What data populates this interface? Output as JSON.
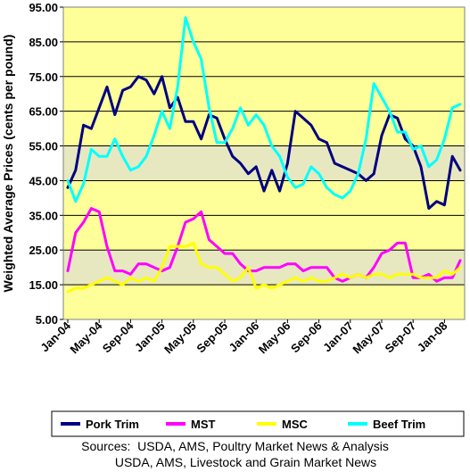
{
  "chart_data": {
    "type": "line",
    "title": "",
    "xlabel": "",
    "ylabel": "Weighted Average Prices (cents per pound)",
    "ylim": [
      5,
      95
    ],
    "yticks": [
      "5.00",
      "15.00",
      "25.00",
      "35.00",
      "45.00",
      "55.00",
      "65.00",
      "75.00",
      "85.00",
      "95.00"
    ],
    "x_tick_labels": [
      "Jan-04",
      "May-04",
      "Sep-04",
      "Jan-05",
      "May-05",
      "Sep-05",
      "Jan-06",
      "May-06",
      "Sep-06",
      "Jan-07",
      "May-07",
      "Sep-07",
      "Jan-08"
    ],
    "x_tick_index": [
      0,
      4,
      8,
      12,
      16,
      20,
      24,
      28,
      32,
      36,
      40,
      44,
      48
    ],
    "grid": "horizontal",
    "legend_placement": "bottom",
    "background_colors": {
      "plot": "#FFFF99",
      "highlight_bands": "#E8E8C0"
    },
    "highlight_bands": [
      [
        45,
        55
      ],
      [
        15,
        25
      ]
    ],
    "series": [
      {
        "name": "Pork Trim",
        "color": "#000080",
        "values": [
          43,
          48,
          61,
          60,
          66,
          72,
          64,
          71,
          72,
          75,
          74,
          70,
          75,
          66,
          69,
          62,
          62,
          57,
          64,
          63,
          57,
          52,
          50,
          47,
          49,
          42,
          48,
          42,
          50,
          65,
          63,
          61,
          57,
          56,
          50,
          49,
          48,
          47,
          45,
          47,
          58,
          64,
          63,
          57,
          55,
          49,
          37,
          39,
          38,
          52,
          48
        ]
      },
      {
        "name": "MST",
        "color": "#FF00FF",
        "values": [
          19,
          30,
          33,
          37,
          36,
          26,
          19,
          19,
          18,
          21,
          21,
          20,
          19,
          20,
          26,
          33,
          34,
          36,
          28,
          26,
          24,
          24,
          21,
          19,
          19,
          20,
          20,
          20,
          21,
          21,
          19,
          20,
          20,
          20,
          17,
          16,
          17,
          18,
          17,
          20,
          24,
          25,
          27,
          27,
          17,
          17,
          18,
          16,
          17,
          17,
          22
        ]
      },
      {
        "name": "MSC",
        "color": "#FFFF00",
        "values": [
          13,
          14,
          14,
          15,
          16,
          17,
          16,
          15,
          17,
          16,
          17,
          16,
          20,
          26,
          26,
          26,
          27,
          21,
          20,
          20,
          18,
          16,
          17,
          20,
          14,
          15,
          14,
          15,
          16,
          17,
          16,
          17,
          16,
          16,
          17,
          18,
          17,
          18,
          17,
          18,
          18,
          17,
          18,
          18,
          18,
          17,
          17,
          17,
          19,
          18,
          20
        ]
      },
      {
        "name": "Beef Trim",
        "color": "#00FFFF",
        "values": [
          45,
          39,
          44,
          54,
          52,
          52,
          57,
          52,
          48,
          49,
          52,
          58,
          65,
          60,
          72,
          92,
          85,
          80,
          66,
          56,
          56,
          60,
          66,
          61,
          64,
          61,
          55,
          52,
          46,
          43,
          44,
          49,
          47,
          43,
          41,
          40,
          42,
          47,
          57,
          73,
          69,
          65,
          59,
          59,
          54,
          55,
          49,
          51,
          57,
          66,
          67
        ]
      }
    ]
  },
  "source": {
    "line1": "Sources:  USDA, AMS, Poultry Market News & Analysis",
    "line2": "USDA, AMS, Livestock and Grain Market News"
  }
}
